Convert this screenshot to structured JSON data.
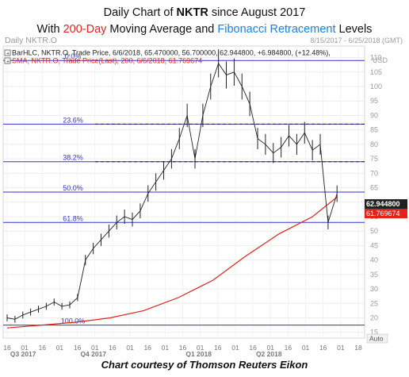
{
  "title": {
    "line1_prefix": "Daily Chart of ",
    "line1_ticker": "NKTR",
    "line1_suffix": " since August 2017",
    "line2_prefix": "With ",
    "line2_ma": "200-Day",
    "line2_mid": " Moving Average and ",
    "line2_fib": "Fibonacci Retracement",
    "line2_suffix": " Levels"
  },
  "header": {
    "chart_name": "Daily NKTR.O",
    "date_range": "8/15/2017 - 6/25/2018 (GMT)",
    "price_legend": "BarHLC, NKTR.O, Trade Price, 6/6/2018, 65.470000, 56.700000, 62.944800, +6.984800, (+12.48%),",
    "sma_legend": "SMA, NKTR.O, Trade Price(Last), 200, 6/6/2018, 61.769674",
    "currency": "USD",
    "price_badge": "62.944800",
    "sma_badge": "61.769674",
    "auto_label": "Auto"
  },
  "caption": "Chart courtesy of Thomson Reuters Eikon",
  "colors": {
    "price": "#222222",
    "sma": "#e3231b",
    "fib": "#3333cc",
    "price_badge": "#222222",
    "sma_badge": "#e3231b"
  },
  "chart_data": {
    "type": "line",
    "title": "Daily Chart of NKTR since August 2017",
    "subtitle": "With 200-Day Moving Average and Fibonacci Retracement Levels",
    "ylim": [
      13,
      114
    ],
    "y_ticks": [
      15,
      20,
      25,
      30,
      35,
      40,
      45,
      50,
      55,
      60,
      65,
      70,
      75,
      80,
      85,
      90,
      95,
      100,
      105,
      110
    ],
    "x_ticks": [
      "16",
      "01",
      "16",
      "01",
      "16",
      "01",
      "16",
      "01",
      "16",
      "01",
      "16",
      "01",
      "16",
      "01",
      "16",
      "01",
      "16",
      "01",
      "16",
      "01",
      "18"
    ],
    "x_periods": [
      "Q3 2017",
      "Q4 2017",
      "Q1 2018",
      "Q2 2018"
    ],
    "fib_levels": [
      {
        "label": "0.0%",
        "value": 109
      },
      {
        "label": "23.6%",
        "value": 87
      },
      {
        "label": "38.2%",
        "value": 74
      },
      {
        "label": "50.0%",
        "value": 63.5
      },
      {
        "label": "61.8%",
        "value": 53
      },
      {
        "label": "100.0%",
        "value": 17.5
      }
    ],
    "series": [
      {
        "name": "NKTR.O Trade Price",
        "style": "ohlc",
        "x": [
          "2017-08-15",
          "2017-08-22",
          "2017-08-29",
          "2017-09-05",
          "2017-09-12",
          "2017-09-19",
          "2017-09-26",
          "2017-10-03",
          "2017-10-10",
          "2017-10-17",
          "2017-10-24",
          "2017-10-31",
          "2017-11-07",
          "2017-11-14",
          "2017-11-21",
          "2017-11-28",
          "2017-12-05",
          "2017-12-12",
          "2017-12-19",
          "2017-12-26",
          "2018-01-02",
          "2018-01-09",
          "2018-01-16",
          "2018-01-23",
          "2018-01-30",
          "2018-02-06",
          "2018-02-13",
          "2018-02-20",
          "2018-02-27",
          "2018-03-06",
          "2018-03-13",
          "2018-03-20",
          "2018-03-27",
          "2018-04-03",
          "2018-04-10",
          "2018-04-17",
          "2018-04-24",
          "2018-05-01",
          "2018-05-08",
          "2018-05-15",
          "2018-05-22",
          "2018-05-29",
          "2018-06-06"
        ],
        "values": [
          20,
          19.5,
          21,
          22,
          23,
          24,
          25.5,
          24,
          24.5,
          27,
          40,
          44,
          47,
          50,
          53,
          55,
          54,
          57,
          63,
          67,
          71,
          75,
          82,
          90,
          75,
          90,
          100,
          108,
          104,
          105,
          100,
          94,
          82,
          80,
          77,
          79,
          83,
          80,
          84,
          78,
          80,
          53,
          62.94
        ]
      },
      {
        "name": "SMA 200",
        "style": "line",
        "x": [
          "2017-08-15",
          "2017-09-15",
          "2017-10-15",
          "2017-11-15",
          "2017-12-15",
          "2018-01-15",
          "2018-02-15",
          "2018-03-15",
          "2018-04-15",
          "2018-05-15",
          "2018-06-06"
        ],
        "values": [
          16.5,
          17.5,
          18.5,
          20,
          22.5,
          27,
          33,
          41,
          49,
          55,
          61.77
        ]
      }
    ]
  }
}
